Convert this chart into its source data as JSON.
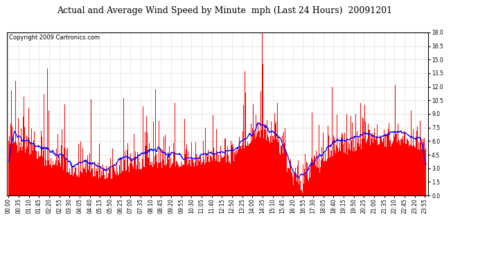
{
  "title": "Actual and Average Wind Speed by Minute  mph (Last 24 Hours)  20091201",
  "copyright": "Copyright 2009 Cartronics.com",
  "ylim": [
    0.0,
    18.0
  ],
  "yticks": [
    0.0,
    1.5,
    3.0,
    4.5,
    6.0,
    7.5,
    9.0,
    10.5,
    12.0,
    13.5,
    15.0,
    16.5,
    18.0
  ],
  "bar_color": "#ff0000",
  "line_color": "#0000ff",
  "background_color": "#ffffff",
  "grid_color": "#cccccc",
  "title_fontsize": 9,
  "copyright_fontsize": 6,
  "tick_fontsize": 5.5,
  "figsize": [
    6.9,
    3.75
  ],
  "dpi": 100
}
